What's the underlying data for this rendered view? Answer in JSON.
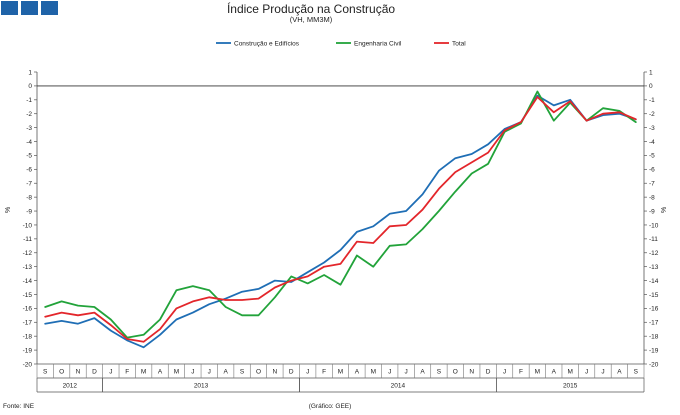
{
  "header": {
    "logo_colors": [
      "#1f63a8",
      "#1f63a8",
      "#1f63a8"
    ],
    "title": "Índice Produção na Construção",
    "subtitle": "(VH, MM3M)"
  },
  "footer": {
    "source": "Fonte: INE",
    "credit": "(Gráfico: GEE)"
  },
  "chart_data": {
    "type": "line",
    "title": "Índice Produção na Construção",
    "subtitle": "(VH, MM3M)",
    "ylabel_left": "%",
    "ylabel_right": "%",
    "ylim": [
      -20,
      1
    ],
    "yticks": [
      1,
      0,
      -1,
      -2,
      -3,
      -4,
      -5,
      -6,
      -7,
      -8,
      -9,
      -10,
      -11,
      -12,
      -13,
      -14,
      -15,
      -16,
      -17,
      -18,
      -19,
      -20
    ],
    "legend_position": "top",
    "months": [
      "S",
      "O",
      "N",
      "D",
      "J",
      "F",
      "M",
      "A",
      "M",
      "J",
      "J",
      "A",
      "S",
      "O",
      "N",
      "D",
      "J",
      "F",
      "M",
      "A",
      "M",
      "J",
      "J",
      "A",
      "S",
      "O",
      "N",
      "D",
      "J",
      "F",
      "M",
      "A",
      "M",
      "J",
      "J",
      "A",
      "S"
    ],
    "years": [
      {
        "label": "2012",
        "start": 0,
        "end": 3
      },
      {
        "label": "2013",
        "start": 4,
        "end": 15
      },
      {
        "label": "2014",
        "start": 16,
        "end": 27
      },
      {
        "label": "2015",
        "start": 28,
        "end": 36
      }
    ],
    "series": [
      {
        "name": "Construção e Edifícios",
        "color": "#1f6eb5",
        "values": [
          -17.1,
          -16.9,
          -17.1,
          -16.7,
          -17.6,
          -18.3,
          -18.8,
          -17.9,
          -16.8,
          -16.3,
          -15.7,
          -15.3,
          -14.8,
          -14.6,
          -14.0,
          -14.1,
          -13.4,
          -12.7,
          -11.8,
          -10.5,
          -10.1,
          -9.2,
          -9.0,
          -7.8,
          -6.1,
          -5.2,
          -4.9,
          -4.2,
          -3.1,
          -2.6,
          -0.7,
          -1.4,
          -1.0,
          -2.5,
          -2.1,
          -2.0,
          -2.4
        ]
      },
      {
        "name": "Engenharia Civil",
        "color": "#22a33a",
        "values": [
          -15.9,
          -15.5,
          -15.8,
          -15.9,
          -16.8,
          -18.1,
          -17.9,
          -16.8,
          -14.7,
          -14.4,
          -14.7,
          -15.9,
          -16.5,
          -16.5,
          -15.2,
          -13.7,
          -14.2,
          -13.6,
          -14.3,
          -12.2,
          -13.0,
          -11.5,
          -11.4,
          -10.3,
          -9.0,
          -7.6,
          -6.3,
          -5.6,
          -3.3,
          -2.7,
          -0.4,
          -2.5,
          -1.2,
          -2.5,
          -1.6,
          -1.8,
          -2.6
        ]
      },
      {
        "name": "Total",
        "color": "#e3262b",
        "values": [
          -16.6,
          -16.3,
          -16.5,
          -16.3,
          -17.2,
          -18.2,
          -18.4,
          -17.5,
          -16.0,
          -15.5,
          -15.2,
          -15.4,
          -15.4,
          -15.3,
          -14.5,
          -14.0,
          -13.7,
          -13.0,
          -12.8,
          -11.2,
          -11.3,
          -10.1,
          -10.0,
          -8.9,
          -7.4,
          -6.2,
          -5.5,
          -4.8,
          -3.2,
          -2.6,
          -0.8,
          -1.9,
          -1.1,
          -2.5,
          -2.0,
          -1.9,
          -2.4
        ]
      }
    ]
  }
}
